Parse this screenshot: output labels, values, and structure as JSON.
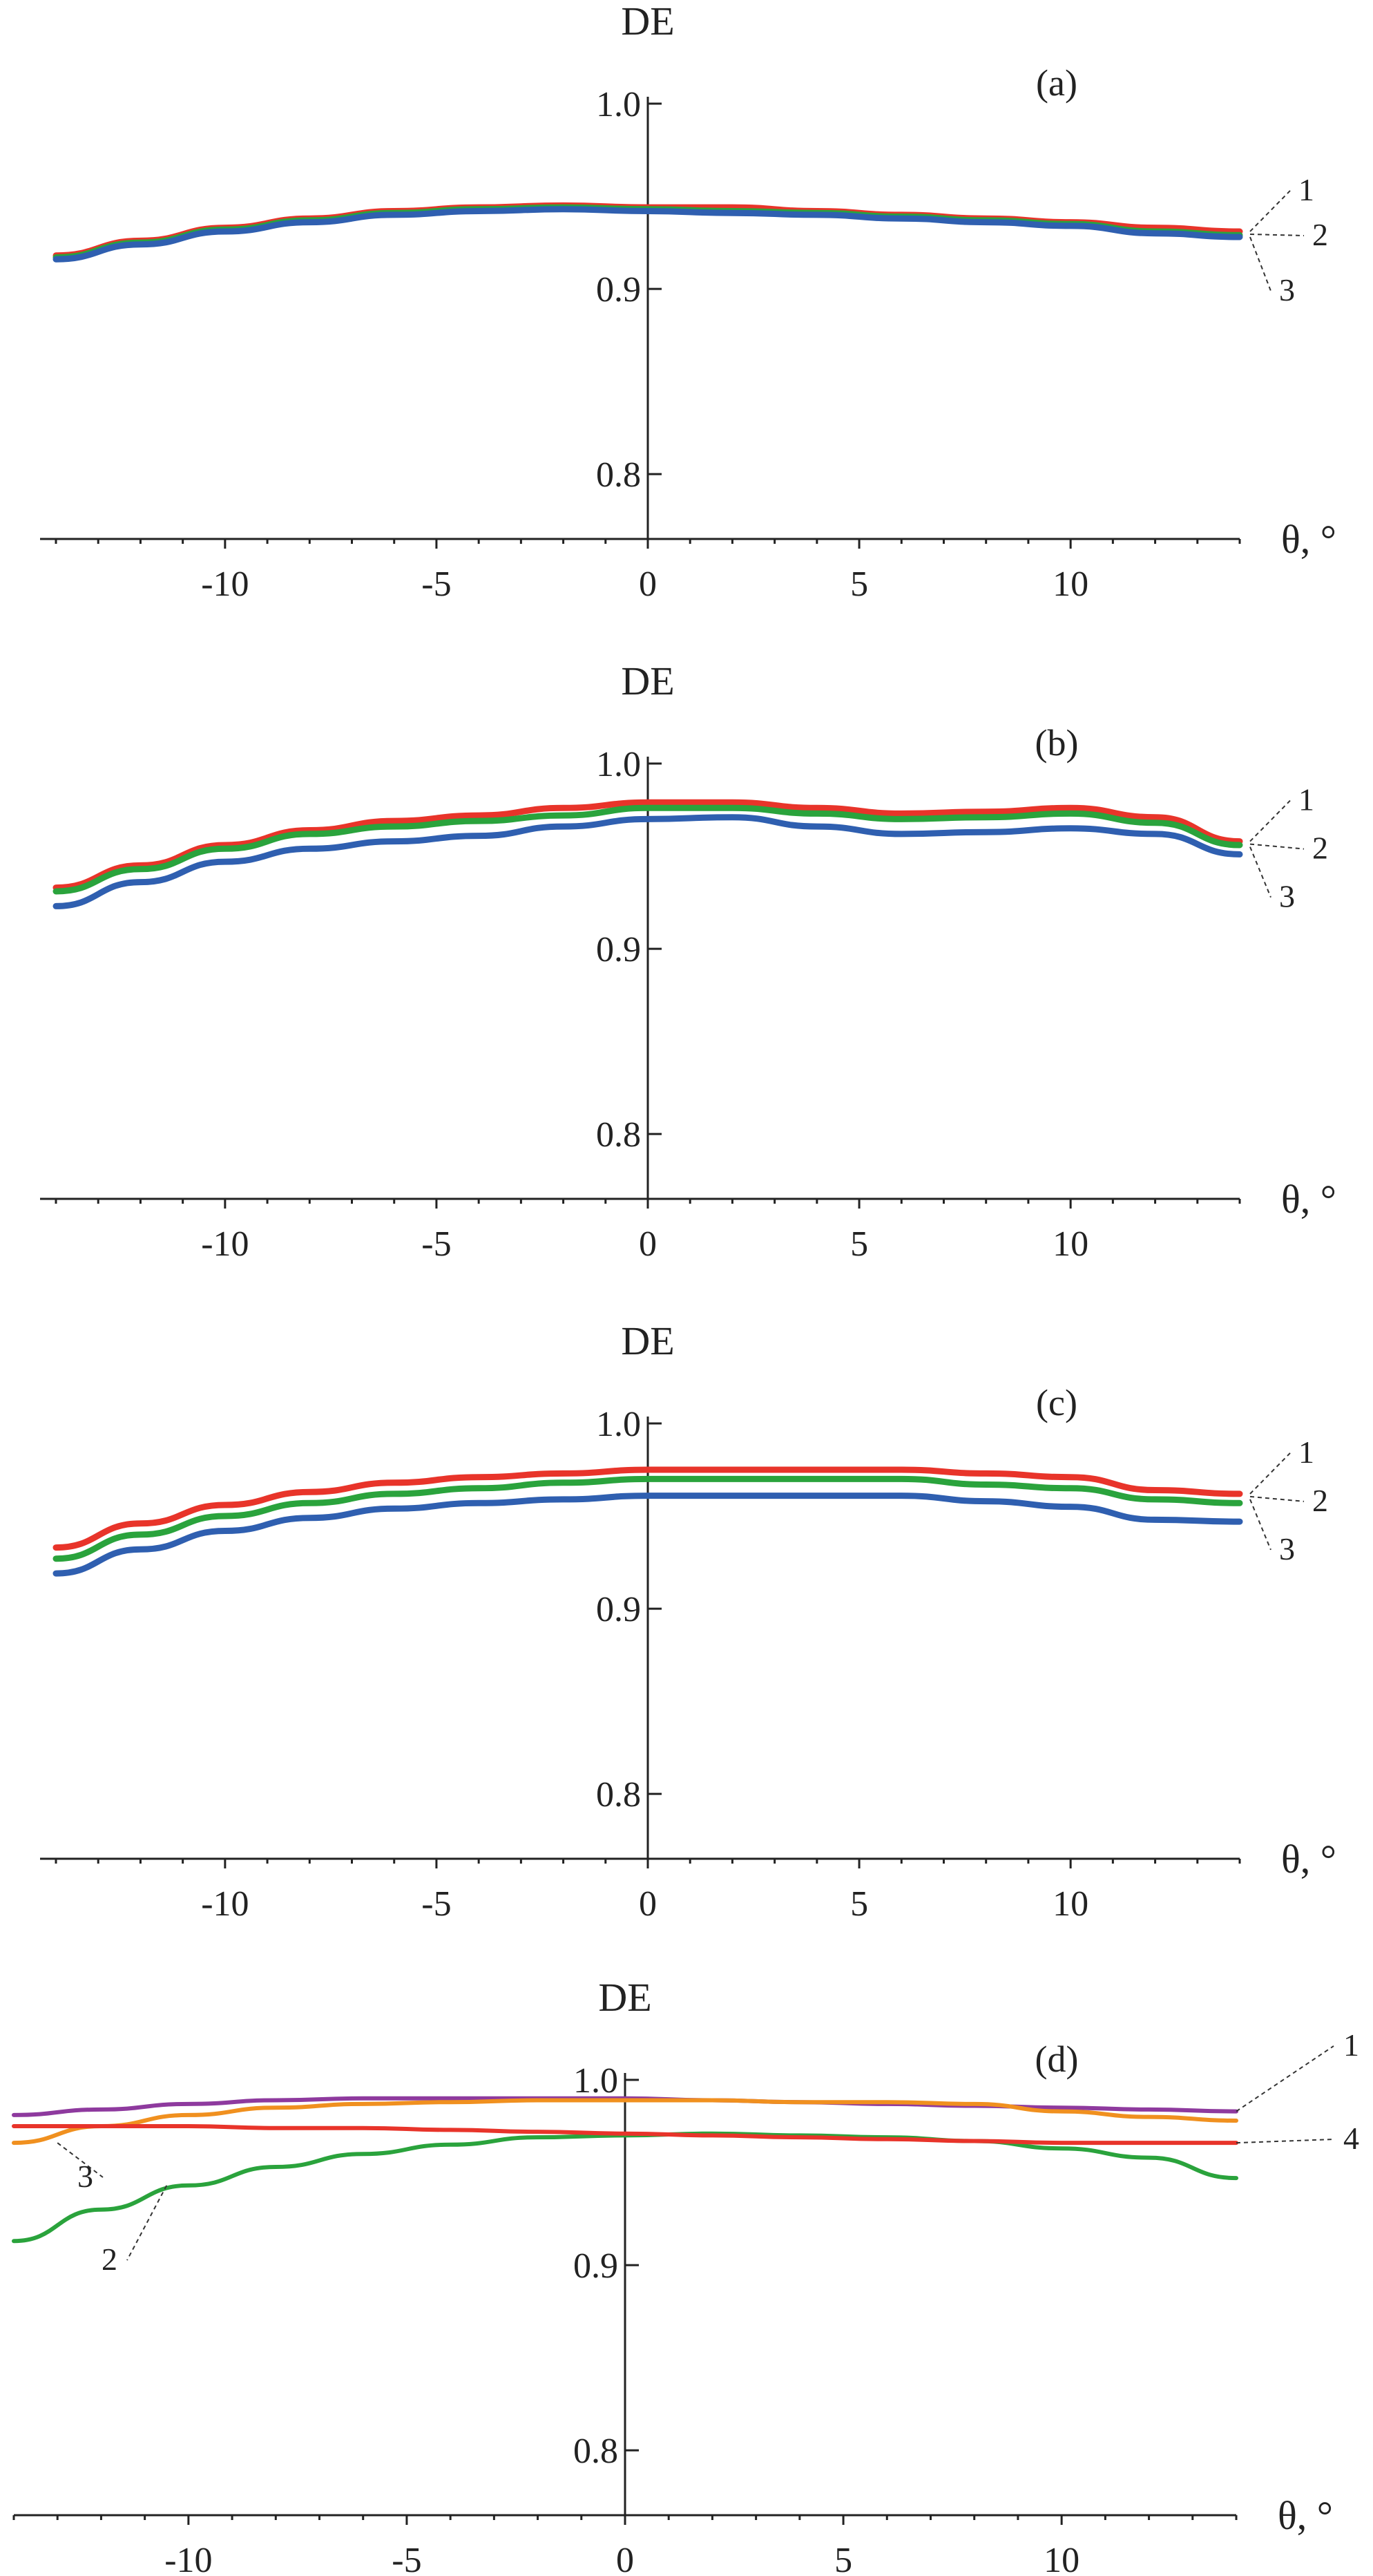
{
  "chart_data": [
    {
      "type": "line",
      "panel_label": "(a)",
      "ylabel": "DE",
      "xlabel": "θ, °",
      "xlim": [
        -14,
        14
      ],
      "ylim": [
        0.765,
        1.0
      ],
      "x_ticks": [
        -10,
        -5,
        0,
        5,
        10
      ],
      "x_tick_labels": [
        "-10",
        "-5",
        "0",
        "5",
        "10"
      ],
      "y_ticks": [
        0.8,
        0.9,
        1.0
      ],
      "y_tick_labels": [
        "0.8",
        "0.9",
        "1.0"
      ],
      "x": [
        -14,
        -12,
        -10,
        -8,
        -6,
        -4,
        -2,
        0,
        2,
        4,
        6,
        8,
        10,
        12,
        14
      ],
      "series": [
        {
          "name": "1",
          "color": "#e8342a",
          "values": [
            0.918,
            0.926,
            0.933,
            0.938,
            0.942,
            0.944,
            0.945,
            0.944,
            0.944,
            0.942,
            0.94,
            0.938,
            0.936,
            0.933,
            0.931
          ]
        },
        {
          "name": "2",
          "color": "#2aa33c",
          "values": [
            0.917,
            0.925,
            0.932,
            0.937,
            0.941,
            0.943,
            0.944,
            0.943,
            0.942,
            0.941,
            0.939,
            0.937,
            0.935,
            0.931,
            0.929
          ]
        },
        {
          "name": "3",
          "color": "#2f5fb0",
          "values": [
            0.916,
            0.924,
            0.931,
            0.936,
            0.94,
            0.942,
            0.943,
            0.942,
            0.941,
            0.94,
            0.938,
            0.936,
            0.934,
            0.93,
            0.928
          ]
        }
      ]
    },
    {
      "type": "line",
      "panel_label": "(b)",
      "ylabel": "DE",
      "xlabel": "θ, °",
      "xlim": [
        -14,
        14
      ],
      "ylim": [
        0.765,
        1.0
      ],
      "x_ticks": [
        -10,
        -5,
        0,
        5,
        10
      ],
      "x_tick_labels": [
        "-10",
        "-5",
        "0",
        "5",
        "10"
      ],
      "y_ticks": [
        0.8,
        0.9,
        1.0
      ],
      "y_tick_labels": [
        "0.8",
        "0.9",
        "1.0"
      ],
      "x": [
        -14,
        -12,
        -10,
        -8,
        -6,
        -4,
        -2,
        0,
        2,
        4,
        6,
        8,
        10,
        12,
        14
      ],
      "series": [
        {
          "name": "1",
          "color": "#e8342a",
          "values": [
            0.933,
            0.945,
            0.956,
            0.964,
            0.969,
            0.972,
            0.976,
            0.979,
            0.979,
            0.976,
            0.973,
            0.974,
            0.976,
            0.971,
            0.958
          ]
        },
        {
          "name": "2",
          "color": "#2aa33c",
          "values": [
            0.931,
            0.943,
            0.954,
            0.962,
            0.966,
            0.969,
            0.972,
            0.976,
            0.976,
            0.973,
            0.97,
            0.971,
            0.973,
            0.968,
            0.956
          ]
        },
        {
          "name": "3",
          "color": "#2f5fb0",
          "values": [
            0.923,
            0.936,
            0.947,
            0.954,
            0.958,
            0.961,
            0.966,
            0.97,
            0.971,
            0.966,
            0.962,
            0.963,
            0.965,
            0.962,
            0.951
          ]
        }
      ]
    },
    {
      "type": "line",
      "panel_label": "(c)",
      "ylabel": "DE",
      "xlabel": "θ, °",
      "xlim": [
        -14,
        14
      ],
      "ylim": [
        0.765,
        1.0
      ],
      "x_ticks": [
        -10,
        -5,
        0,
        5,
        10
      ],
      "x_tick_labels": [
        "-10",
        "-5",
        "0",
        "5",
        "10"
      ],
      "y_ticks": [
        0.8,
        0.9,
        1.0
      ],
      "y_tick_labels": [
        "0.8",
        "0.9",
        "1.0"
      ],
      "x": [
        -14,
        -12,
        -10,
        -8,
        -6,
        -4,
        -2,
        0,
        2,
        4,
        6,
        8,
        10,
        12,
        14
      ],
      "series": [
        {
          "name": "1",
          "color": "#e8342a",
          "values": [
            0.933,
            0.946,
            0.956,
            0.963,
            0.968,
            0.971,
            0.973,
            0.975,
            0.975,
            0.975,
            0.975,
            0.973,
            0.971,
            0.964,
            0.962
          ]
        },
        {
          "name": "2",
          "color": "#2aa33c",
          "values": [
            0.927,
            0.94,
            0.95,
            0.957,
            0.962,
            0.965,
            0.968,
            0.97,
            0.97,
            0.97,
            0.97,
            0.967,
            0.965,
            0.959,
            0.957
          ]
        },
        {
          "name": "3",
          "color": "#2f5fb0",
          "values": [
            0.919,
            0.932,
            0.942,
            0.949,
            0.954,
            0.957,
            0.959,
            0.961,
            0.961,
            0.961,
            0.961,
            0.958,
            0.955,
            0.948,
            0.947
          ]
        }
      ]
    },
    {
      "type": "line",
      "panel_label": "(d)",
      "ylabel": "DE",
      "xlabel": "θ, °",
      "xlim": [
        -14,
        14
      ],
      "ylim": [
        0.765,
        1.0
      ],
      "x_ticks": [
        -10,
        -5,
        0,
        5,
        10
      ],
      "x_tick_labels": [
        "-10",
        "-5",
        "0",
        "5",
        "10"
      ],
      "y_ticks": [
        0.8,
        0.9,
        1.0
      ],
      "y_tick_labels": [
        "0.8",
        "0.9",
        "1.0"
      ],
      "x": [
        -14,
        -12,
        -10,
        -8,
        -6,
        -4,
        -2,
        0,
        2,
        4,
        6,
        8,
        10,
        12,
        14
      ],
      "series": [
        {
          "name": "1",
          "color": "#8e3a9e",
          "values": [
            0.981,
            0.984,
            0.987,
            0.989,
            0.99,
            0.99,
            0.99,
            0.99,
            0.989,
            0.988,
            0.987,
            0.986,
            0.985,
            0.984,
            0.983
          ]
        },
        {
          "name": "2",
          "color": "#2aa33c",
          "values": [
            0.913,
            0.93,
            0.943,
            0.953,
            0.96,
            0.965,
            0.969,
            0.97,
            0.971,
            0.97,
            0.969,
            0.967,
            0.963,
            0.958,
            0.947
          ]
        },
        {
          "name": "3",
          "color": "#f0901f",
          "values": [
            0.966,
            0.975,
            0.981,
            0.985,
            0.987,
            0.988,
            0.989,
            0.989,
            0.989,
            0.988,
            0.988,
            0.987,
            0.983,
            0.98,
            0.978
          ]
        },
        {
          "name": "4",
          "color": "#e8342a",
          "values": [
            0.975,
            0.975,
            0.975,
            0.974,
            0.974,
            0.973,
            0.972,
            0.971,
            0.97,
            0.969,
            0.968,
            0.967,
            0.966,
            0.966,
            0.966
          ]
        }
      ]
    }
  ]
}
